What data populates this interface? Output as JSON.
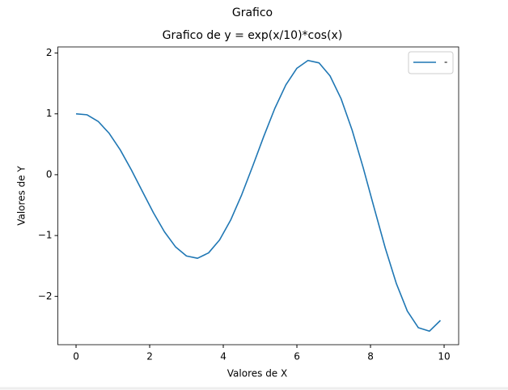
{
  "chart_data": {
    "type": "line",
    "suptitle": "Grafico",
    "title": "Grafico de y = exp(x/10)*cos(x)",
    "x_label": "Valores de X",
    "y_label": "Valores de Y",
    "x": [
      0,
      0.3,
      0.6,
      0.9,
      1.2,
      1.5,
      1.8,
      2.1,
      2.4,
      2.7,
      3.0,
      3.3,
      3.6,
      3.9,
      4.2,
      4.5,
      4.8,
      5.1,
      5.4,
      5.7,
      6.0,
      6.3,
      6.6,
      6.9,
      7.2,
      7.5,
      7.8,
      8.1,
      8.4,
      8.7,
      9.0,
      9.3,
      9.6,
      9.9
    ],
    "series": [
      {
        "name": "-",
        "color": "#1f77b4",
        "values": [
          1,
          0.98443,
          0.87637,
          0.68015,
          0.40856,
          0.08219,
          -0.27201,
          -0.62282,
          -0.93741,
          -1.1843,
          -1.33635,
          -1.37355,
          -1.28535,
          -1.07219,
          -0.74616,
          -0.3306,
          0.14141,
          0.62944,
          1.08914,
          1.47599,
          1.74955,
          1.87753,
          1.8385,
          1.62488,
          1.24981,
          0.73384,
          0.11771,
          -0.54746,
          -1.20287,
          -1.78555,
          -2.24102,
          -2.51507,
          -2.57169,
          -2.39517
        ]
      }
    ],
    "xlim": [
      -0.495,
      10.395
    ],
    "ylim": [
      -2.794,
      2.1
    ],
    "xticks": [
      0,
      2,
      4,
      6,
      8,
      10
    ],
    "yticks": [
      {
        "value": -2,
        "label": "−2"
      },
      {
        "value": -1,
        "label": "−1"
      },
      0,
      1,
      2
    ],
    "legend": "upper right",
    "grid": false
  }
}
